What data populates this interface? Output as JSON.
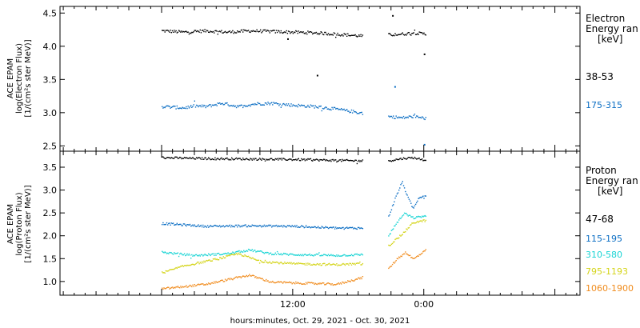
{
  "chart_data": [
    {
      "type": "scatter",
      "panel": "electron",
      "ylabel_lines": [
        "ACE EPAM",
        "log(Electron Flux)",
        "[1/(cm²s ster MeV)]"
      ],
      "ylim": [
        2.42,
        4.6
      ],
      "y_ticks": [
        "2.5",
        "3.0",
        "3.5",
        "4.0",
        "4.5"
      ],
      "y_tick_values": [
        2.5,
        3.0,
        3.5,
        4.0,
        4.5
      ],
      "legend_title_lines": [
        "Electron",
        "Energy ran",
        "[keV]"
      ],
      "gap_hours": [
        18.4,
        20.7
      ],
      "series": [
        {
          "name": "38-53",
          "color": "#000000",
          "x": [
            0,
            2,
            4,
            6,
            8,
            10,
            12,
            14,
            16,
            18.4,
            20.7,
            22,
            23,
            24.2
          ],
          "y": [
            4.24,
            4.22,
            4.24,
            4.22,
            4.24,
            4.23,
            4.22,
            4.21,
            4.19,
            4.16,
            4.18,
            4.19,
            4.21,
            4.19
          ],
          "outliers": [
            [
              21.1,
              4.47
            ],
            [
              11.5,
              4.12
            ],
            [
              24.0,
              3.89
            ],
            [
              14.2,
              3.57
            ]
          ]
        },
        {
          "name": "175-315",
          "color": "#0d6fc4",
          "x": [
            0,
            2,
            3,
            4,
            5.5,
            7,
            8.5,
            10,
            12,
            14,
            16,
            18.4,
            20.7,
            22,
            23,
            24.2
          ],
          "y": [
            3.1,
            3.08,
            3.11,
            3.1,
            3.15,
            3.1,
            3.14,
            3.15,
            3.12,
            3.1,
            3.06,
            3.0,
            2.95,
            2.93,
            2.95,
            2.92
          ],
          "outliers": [
            [
              21.3,
              3.4
            ],
            [
              24.0,
              2.53
            ]
          ]
        }
      ]
    },
    {
      "type": "scatter",
      "panel": "proton",
      "ylabel_lines": [
        "ACE EPAM",
        "log(Proton Flux)",
        "[1/(cm²s ster MeV)]"
      ],
      "ylim": [
        0.7,
        3.85
      ],
      "y_ticks": [
        "1.0",
        "1.5",
        "2.0",
        "2.5",
        "3.0",
        "3.5"
      ],
      "y_tick_values": [
        1.0,
        1.5,
        2.0,
        2.5,
        3.0,
        3.5
      ],
      "legend_title_lines": [
        "Proton",
        "Energy ran",
        "[keV]"
      ],
      "gap_hours": [
        18.4,
        20.7
      ],
      "series": [
        {
          "name": "47-68",
          "color": "#000000",
          "x": [
            0,
            4,
            8,
            12,
            16,
            18.4,
            20.7,
            22,
            23,
            24.2
          ],
          "y": [
            3.72,
            3.7,
            3.69,
            3.68,
            3.66,
            3.65,
            3.65,
            3.7,
            3.72,
            3.66
          ]
        },
        {
          "name": "115-195",
          "color": "#0d6fc4",
          "x": [
            0,
            4,
            8,
            12,
            16,
            18.4,
            20.7,
            21.3,
            22.0,
            22.4,
            23.0,
            23.5,
            24.2
          ],
          "y": [
            2.28,
            2.22,
            2.23,
            2.22,
            2.18,
            2.18,
            2.4,
            2.8,
            3.2,
            2.9,
            2.6,
            2.85,
            2.9
          ]
        },
        {
          "name": "310-580",
          "color": "#19d4d4",
          "x": [
            0,
            3,
            6,
            8,
            10,
            12,
            16,
            18.4,
            20.7,
            21.5,
            22.2,
            23.0,
            24.2
          ],
          "y": [
            1.65,
            1.58,
            1.62,
            1.7,
            1.62,
            1.6,
            1.58,
            1.6,
            2.0,
            2.3,
            2.5,
            2.4,
            2.45
          ]
        },
        {
          "name": "795-1193",
          "color": "#d4d41a",
          "x": [
            0,
            2,
            5,
            7,
            9,
            12,
            16,
            18.4,
            20.7,
            22,
            23,
            24.2
          ],
          "y": [
            1.2,
            1.35,
            1.5,
            1.62,
            1.45,
            1.4,
            1.38,
            1.4,
            1.78,
            2.05,
            2.3,
            2.35
          ]
        },
        {
          "name": "1060-1900",
          "color": "#f08c1e",
          "x": [
            0,
            2,
            4,
            6,
            8,
            10,
            12,
            16,
            18.4,
            20.7,
            21.5,
            22.3,
            23.0,
            24.2
          ],
          "y": [
            0.85,
            0.9,
            0.95,
            1.05,
            1.15,
            1.0,
            0.98,
            0.95,
            1.1,
            1.28,
            1.5,
            1.65,
            1.5,
            1.7
          ]
        }
      ]
    }
  ],
  "x_axis": {
    "xlim_hours": [
      -9.3,
      38.3
    ],
    "ticks": [
      {
        "hour": 12,
        "label": "12:00"
      },
      {
        "hour": 24,
        "label": "0:00"
      }
    ],
    "label": "hours:minutes, Oct. 29, 2021 - Oct. 30, 2021"
  }
}
